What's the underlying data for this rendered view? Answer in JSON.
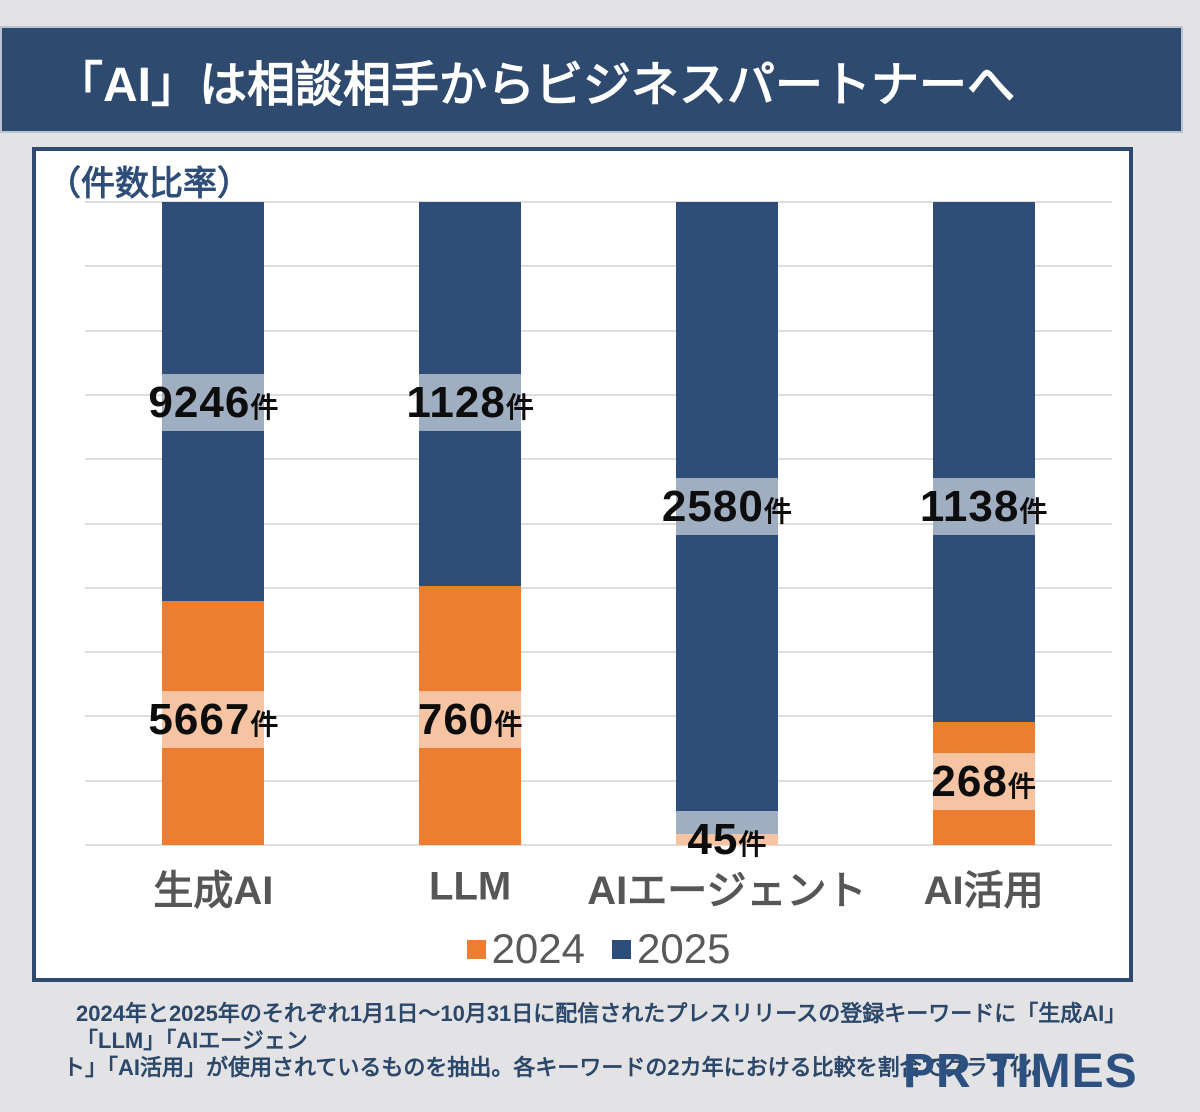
{
  "banner": {
    "title": "「AI」は相談相手からビジネスパートナーへ"
  },
  "chart": {
    "axis_note": "（件数比率）"
  },
  "chart_data": {
    "type": "bar",
    "subtype": "stacked-100-percent-column",
    "title": "「AI」は相談相手からビジネスパートナーへ",
    "axis_note": "（件数比率）",
    "unit": "件",
    "categories": [
      "生成AI",
      "LLM",
      "AIエージェント",
      "AI活用"
    ],
    "series": [
      {
        "name": "2024",
        "color": "#ec7d31",
        "values": [
          5667,
          760,
          45,
          268
        ]
      },
      {
        "name": "2025",
        "color": "#2e4d78",
        "values": [
          9246,
          1128,
          2580,
          1138
        ]
      }
    ],
    "grid": "horizontal gridlines every 10%",
    "legend_position": "bottom-center",
    "value_label_style": "black bold text on translucent white band over bar"
  },
  "footer": {
    "note_lines": [
      "2024年と2025年のそれぞれ1月1日～10月31日に配信されたプレスリリースの登録キーワードに「生成AI」「LLM」「AIエージェン",
      "ト」「AI活用」が使用されているものを抽出。各キーワードの2カ年における比較を割合でグラフ化。"
    ],
    "logo_text": "PR TIMES"
  }
}
